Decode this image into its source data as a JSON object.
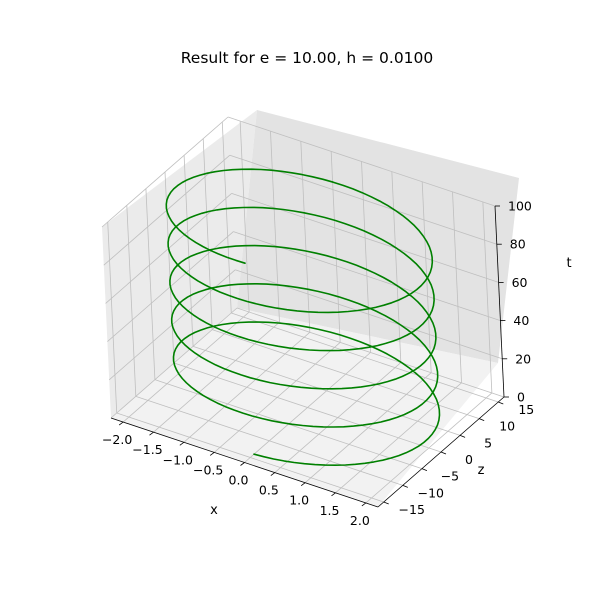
{
  "chart_data": {
    "type": "line3d",
    "title": "Result for e = 10.00, h = 0.0100",
    "xlabel": "x",
    "ylabel": "z",
    "zlabel": "t",
    "xlim": [
      -2.2,
      2.2
    ],
    "ylim": [
      -16.5,
      16.5
    ],
    "zlim": [
      0,
      100
    ],
    "x_ticks": [
      -2.0,
      -1.5,
      -1.0,
      -0.5,
      0.0,
      0.5,
      1.0,
      1.5,
      2.0
    ],
    "x_tick_labels": [
      "−2.0",
      "−1.5",
      "−1.0",
      "−0.5",
      "0.0",
      "0.5",
      "1.0",
      "1.5",
      "2.0"
    ],
    "y_ticks": [
      -15,
      -10,
      -5,
      0,
      5,
      10,
      15
    ],
    "y_tick_labels": [
      "−15",
      "−10",
      "−5",
      "0",
      "5",
      "10",
      "15"
    ],
    "z_ticks": [
      0,
      20,
      40,
      60,
      80,
      100
    ],
    "z_tick_labels": [
      "0",
      "20",
      "40",
      "60",
      "80",
      "100"
    ],
    "grid": true,
    "series": [
      {
        "color": "#008000",
        "period": 20,
        "amplitude_x": 2.0,
        "amplitude_z": 14.0,
        "t_start": 0,
        "t_end": 100
      }
    ]
  }
}
